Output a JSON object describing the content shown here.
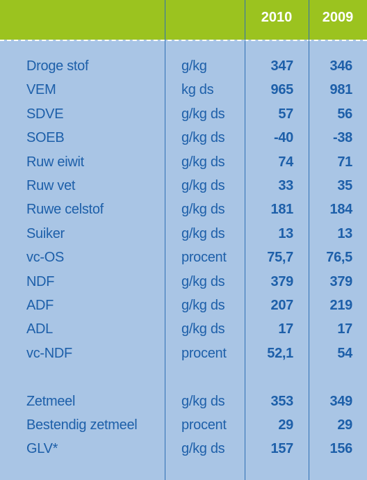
{
  "table": {
    "headers": [
      "2010",
      "2009"
    ],
    "groups": [
      [
        [
          "Droge stof",
          "g/kg",
          "347",
          "346"
        ],
        [
          "VEM",
          "kg ds",
          "965",
          "981"
        ],
        [
          "SDVE",
          "g/kg ds",
          "57",
          "56"
        ],
        [
          "SOEB",
          "g/kg ds",
          "-40",
          "-38"
        ],
        [
          "Ruw eiwit",
          "g/kg ds",
          "74",
          "71"
        ],
        [
          "Ruw vet",
          "g/kg ds",
          "33",
          "35"
        ],
        [
          "Ruwe celstof",
          "g/kg ds",
          "181",
          "184"
        ],
        [
          "Suiker",
          "g/kg ds",
          "13",
          "13"
        ],
        [
          "vc-OS",
          "procent",
          "75,7",
          "76,5"
        ],
        [
          "NDF",
          "g/kg ds",
          "379",
          "379"
        ],
        [
          "ADF",
          "g/kg ds",
          "207",
          "219"
        ],
        [
          "ADL",
          "g/kg ds",
          "17",
          "17"
        ],
        [
          "vc-NDF",
          "procent",
          "52,1",
          "54"
        ]
      ],
      [
        [
          "Zetmeel",
          "g/kg ds",
          "353",
          "349"
        ],
        [
          "Bestendig zetmeel",
          "procent",
          "29",
          "29"
        ],
        [
          "GLV*",
          "g/kg ds",
          "157",
          "156"
        ]
      ]
    ]
  }
}
